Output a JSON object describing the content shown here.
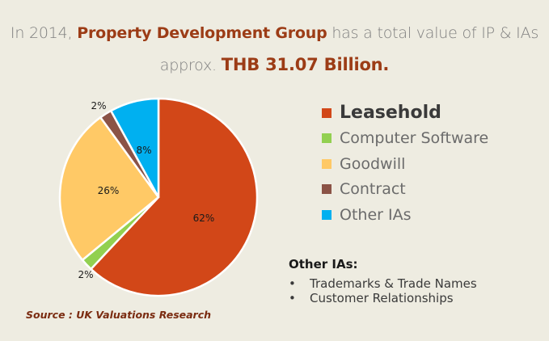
{
  "headline": {
    "line1_pre": "In 2014, ",
    "line1_company": "Property Development Group",
    "line1_post": " has a total value of IP & IAs",
    "line2_pre": "approx. ",
    "line2_value": "THB 31.07 Billion."
  },
  "chart_data": {
    "type": "pie",
    "title": "",
    "slices": [
      {
        "name": "Leasehold",
        "value": 62,
        "label": "62%",
        "color": "#d24718"
      },
      {
        "name": "Computer Software",
        "value": 2,
        "label": "2%",
        "color": "#92d050"
      },
      {
        "name": "Goodwill",
        "value": 26,
        "label": "26%",
        "color": "#ffc966"
      },
      {
        "name": "Contract",
        "value": 2,
        "label": "2%",
        "color": "#8b5346"
      },
      {
        "name": "Other IAs",
        "value": 8,
        "label": "8%",
        "color": "#00b0f0"
      }
    ],
    "legend_position": "right"
  },
  "other_ias": {
    "title": "Other IAs:",
    "bullet": "•",
    "items": [
      "Trademarks & Trade Names",
      "Customer Relationships"
    ]
  },
  "source": "Source : UK Valuations Research"
}
